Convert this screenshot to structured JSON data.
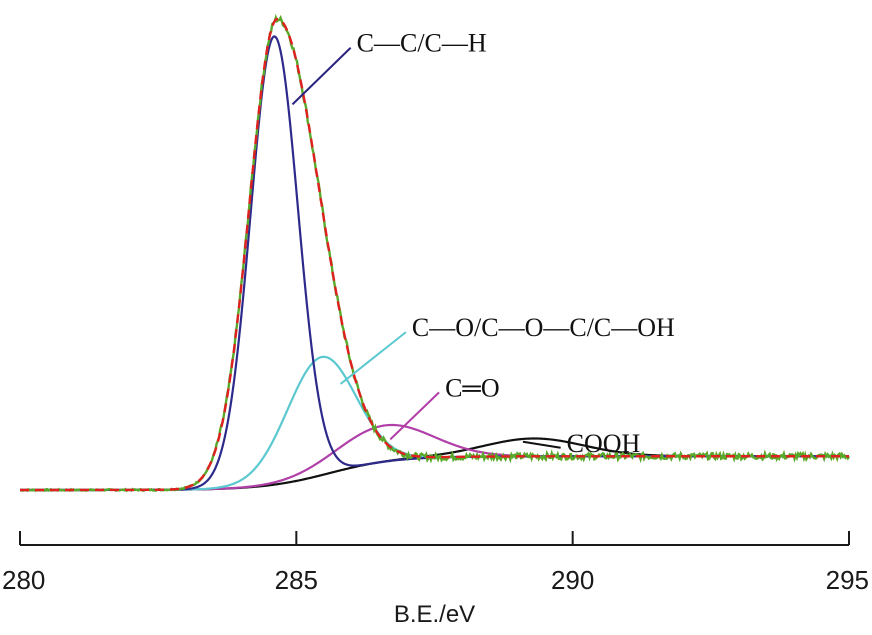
{
  "chart_data": {
    "type": "line",
    "title": "",
    "xlabel": "B.E./eV",
    "ylabel": "",
    "xlim": [
      280,
      295
    ],
    "ylim": [
      0,
      1
    ],
    "y_axis_visible": false,
    "grid": false,
    "x_ticks": [
      280,
      285,
      290,
      295
    ],
    "x_tick_labels": [
      "280",
      "285",
      "290",
      "295"
    ],
    "baseline": {
      "start": 0.0,
      "end": 0.07,
      "center": 285.6,
      "width": 0.6
    },
    "series": [
      {
        "component": "measured",
        "color": "#5aa82a",
        "style": "solid",
        "noise": 0.004,
        "x0": 284.65,
        "amplitude": 0.965,
        "sigma": 0.5,
        "gamma": 1.55
      },
      {
        "component": "envelope",
        "color": "#e02020",
        "style": "dashed",
        "x0": 284.65,
        "amplitude": 0.965,
        "sigma": 0.5,
        "gamma": 1.55
      },
      {
        "component": "peak-1",
        "color": "#2e2a8c",
        "style": "solid",
        "x0": 284.6,
        "amplitude": 0.93,
        "sigma": 0.43,
        "gamma": 1.0
      },
      {
        "component": "peak-2",
        "color": "#5cc8d0",
        "style": "solid",
        "x0": 285.45,
        "amplitude": 0.245,
        "sigma": 0.62,
        "gamma": 1.0
      },
      {
        "component": "peak-3",
        "color": "#b040a8",
        "style": "solid",
        "x0": 286.6,
        "amplitude": 0.075,
        "sigma": 0.85,
        "gamma": 1.0
      },
      {
        "component": "peak-4",
        "color": "#111111",
        "style": "solid",
        "x0": 289.3,
        "amplitude": 0.037,
        "sigma": 0.9,
        "gamma": 1.0
      }
    ],
    "annotations": [
      {
        "label": "C—C/C—H",
        "color": "#2a2480",
        "x": 286.2,
        "y": 0.93,
        "point_x": 284.93,
        "point_y": 0.8
      },
      {
        "label": "C—O/C—O—C/C—OH",
        "color": "#5cc8d0",
        "x": 287.2,
        "y": 0.34,
        "point_x": 285.8,
        "point_y": 0.22
      },
      {
        "label": "C═O",
        "color": "#b040a8",
        "x": 287.8,
        "y": 0.215,
        "point_x": 286.7,
        "point_y": 0.105
      },
      {
        "label": "COOH",
        "color": "#111111",
        "x": 290.0,
        "y": 0.1,
        "point_x": 289.1,
        "point_y": 0.1
      }
    ]
  }
}
